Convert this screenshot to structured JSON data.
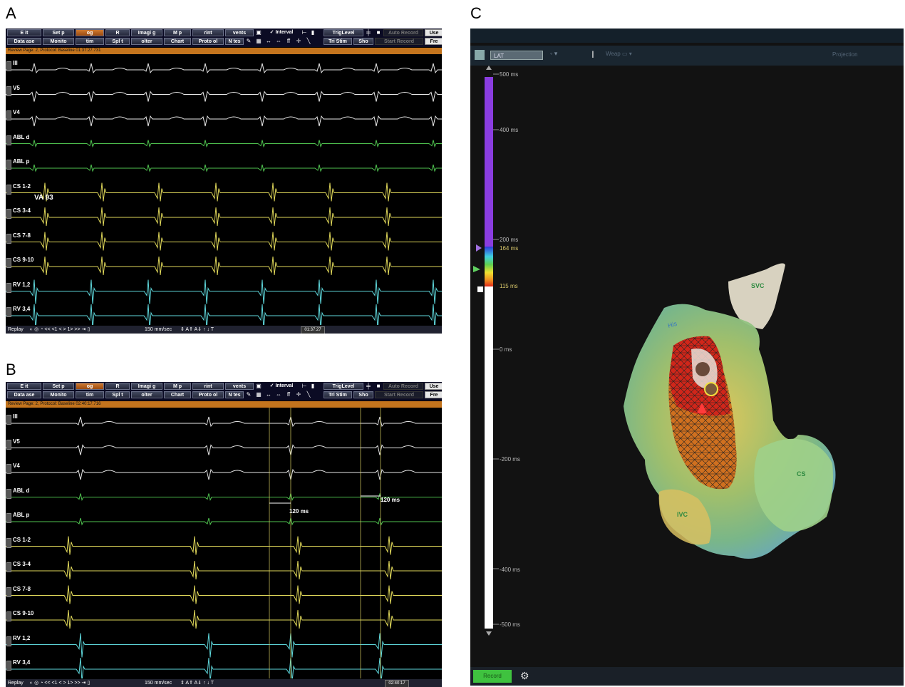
{
  "panels": {
    "a": "A",
    "b": "B",
    "c": "C"
  },
  "toolbar": {
    "row1": [
      "Exit",
      "Setup",
      "Log",
      "RF",
      "Imaging",
      "Map",
      "Print",
      "Events"
    ],
    "row1_display": [
      "E  it",
      "Set  p",
      "  og",
      "R  ",
      "Imagi  g",
      "M  p",
      "  rint",
      "  vents"
    ],
    "row2_display": [
      "Data  ase",
      "Monito  ",
      "  tim",
      "Spl  t",
      "  olter",
      "Chart",
      "Proto  ol",
      "N  tes"
    ],
    "interval": "✓ Interval",
    "triglevel": "TrigLevel",
    "trigstim": "Tri  Stim",
    "show": "Sho  ",
    "auto_record": "Auto Record",
    "start_record": "Start Record",
    "user": "Use",
    "fre": "Fre"
  },
  "panel_a": {
    "status": "Review Page: 2, Protocol: Baseline   01:37:27.731",
    "channels": [
      "III",
      "V5",
      "V4",
      "ABL d",
      "ABL p",
      "CS 1-2",
      "CS 3-4",
      "CS 7-8",
      "CS 9-10",
      "RV 1,2",
      "RV 3,4"
    ],
    "annotation": "VA 93",
    "speed": "150 mm/sec",
    "time": "01:37:27",
    "replay": "Replay"
  },
  "panel_b": {
    "status": "Review Page: 2, Protocol: Baseline   02:40:17.716",
    "channels": [
      "III",
      "V5",
      "V4",
      "ABL d",
      "ABL p",
      "CS 1-2",
      "CS 3-4",
      "CS 7-8",
      "CS 9-10",
      "RV 1,2",
      "RV 3,4"
    ],
    "measure1": "120 ms",
    "measure2": "120 ms",
    "speed": "150 mm/sec",
    "time": "02:40:17",
    "replay": "Replay"
  },
  "panel_c": {
    "map_select": "LAT",
    "menu_right": "Projection",
    "scale_labels": [
      "500 ms",
      "400 ms",
      "200 ms",
      "164 ms",
      "115 ms",
      "0 ms",
      "-200 ms",
      "-400 ms",
      "-500 ms"
    ],
    "anatomy": {
      "svc": "SVC",
      "cs": "CS",
      "ivc": "IVC",
      "his": "His"
    },
    "bottom_button": "Record"
  },
  "colors": {
    "accent_orange": "#c3741d",
    "ecg_white": "#e8e8e8",
    "abl_green": "#4fc24f",
    "cs_yellow": "#e0d85a",
    "rv_cyan": "#5fd8dc",
    "scale_purple": "#8a3de0"
  }
}
